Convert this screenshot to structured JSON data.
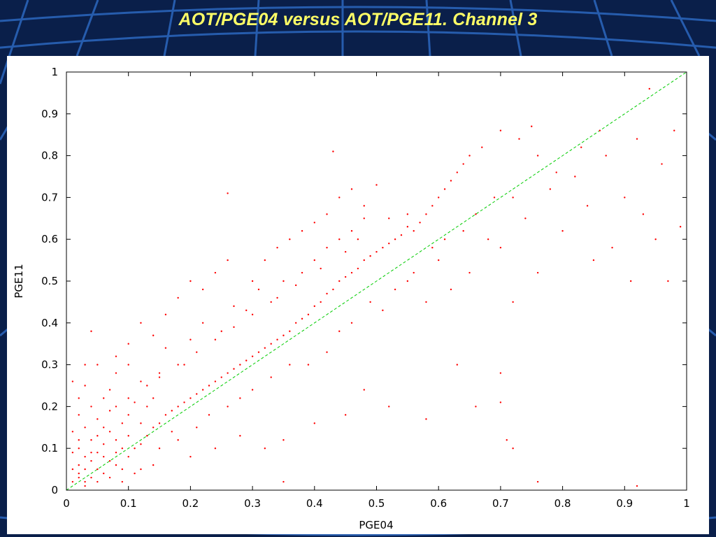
{
  "slide": {
    "title": "AOT/PGE04 versus AOT/PGE11. Channel 3",
    "background_color": "#0a1f4a",
    "title_color": "#ffff66"
  },
  "chart_data": {
    "type": "scatter",
    "xlabel": "PGE04",
    "ylabel": "PGE11",
    "xlim": [
      0,
      1
    ],
    "ylim": [
      0,
      1
    ],
    "x_ticks": [
      "0",
      "0.1",
      "0.2",
      "0.3",
      "0.4",
      "0.5",
      "0.6",
      "0.7",
      "0.8",
      "0.9",
      "1"
    ],
    "y_ticks": [
      "0",
      "0.1",
      "0.2",
      "0.3",
      "0.4",
      "0.5",
      "0.6",
      "0.7",
      "0.8",
      "0.9",
      "1"
    ],
    "grid": false,
    "legend": "none",
    "point_color": "#ff0000",
    "reference_line": {
      "style": "dashed",
      "color": "#00cc00",
      "from": [
        0,
        0
      ],
      "to": [
        1,
        1
      ]
    },
    "series": [
      {
        "points": [
          [
            0.01,
            0.02
          ],
          [
            0.02,
            0.03
          ],
          [
            0.01,
            0.05
          ],
          [
            0.03,
            0.02
          ],
          [
            0.02,
            0.06
          ],
          [
            0.04,
            0.03
          ],
          [
            0.03,
            0.08
          ],
          [
            0.05,
            0.05
          ],
          [
            0.02,
            0.1
          ],
          [
            0.04,
            0.12
          ],
          [
            0.06,
            0.04
          ],
          [
            0.01,
            0.14
          ],
          [
            0.05,
            0.09
          ],
          [
            0.07,
            0.07
          ],
          [
            0.03,
            0.15
          ],
          [
            0.06,
            0.11
          ],
          [
            0.08,
            0.06
          ],
          [
            0.02,
            0.18
          ],
          [
            0.09,
            0.1
          ],
          [
            0.04,
            0.2
          ],
          [
            0.07,
            0.14
          ],
          [
            0.1,
            0.08
          ],
          [
            0.05,
            0.17
          ],
          [
            0.08,
            0.12
          ],
          [
            0.11,
            0.1
          ],
          [
            0.06,
            0.22
          ],
          [
            0.09,
            0.16
          ],
          [
            0.12,
            0.11
          ],
          [
            0.03,
            0.25
          ],
          [
            0.1,
            0.18
          ],
          [
            0.13,
            0.13
          ],
          [
            0.07,
            0.24
          ],
          [
            0.12,
            0.16
          ],
          [
            0.14,
            0.15
          ],
          [
            0.08,
            0.28
          ],
          [
            0.11,
            0.21
          ],
          [
            0.15,
            0.16
          ],
          [
            0.05,
            0.3
          ],
          [
            0.13,
            0.2
          ],
          [
            0.16,
            0.18
          ],
          [
            0.1,
            0.3
          ],
          [
            0.14,
            0.22
          ],
          [
            0.17,
            0.19
          ],
          [
            0.18,
            0.2
          ],
          [
            0.12,
            0.26
          ],
          [
            0.19,
            0.21
          ],
          [
            0.2,
            0.22
          ],
          [
            0.15,
            0.28
          ],
          [
            0.21,
            0.23
          ],
          [
            0.22,
            0.24
          ],
          [
            0.16,
            0.34
          ],
          [
            0.23,
            0.25
          ],
          [
            0.24,
            0.26
          ],
          [
            0.19,
            0.3
          ],
          [
            0.25,
            0.27
          ],
          [
            0.26,
            0.28
          ],
          [
            0.2,
            0.36
          ],
          [
            0.27,
            0.29
          ],
          [
            0.28,
            0.3
          ],
          [
            0.22,
            0.4
          ],
          [
            0.29,
            0.31
          ],
          [
            0.3,
            0.32
          ],
          [
            0.25,
            0.38
          ],
          [
            0.31,
            0.33
          ],
          [
            0.32,
            0.34
          ],
          [
            0.27,
            0.44
          ],
          [
            0.33,
            0.35
          ],
          [
            0.34,
            0.36
          ],
          [
            0.3,
            0.42
          ],
          [
            0.35,
            0.37
          ],
          [
            0.36,
            0.38
          ],
          [
            0.31,
            0.48
          ],
          [
            0.37,
            0.4
          ],
          [
            0.38,
            0.41
          ],
          [
            0.33,
            0.45
          ],
          [
            0.39,
            0.42
          ],
          [
            0.4,
            0.44
          ],
          [
            0.35,
            0.5
          ],
          [
            0.41,
            0.45
          ],
          [
            0.42,
            0.47
          ],
          [
            0.38,
            0.52
          ],
          [
            0.43,
            0.48
          ],
          [
            0.44,
            0.5
          ],
          [
            0.4,
            0.55
          ],
          [
            0.45,
            0.51
          ],
          [
            0.46,
            0.52
          ],
          [
            0.42,
            0.58
          ],
          [
            0.47,
            0.53
          ],
          [
            0.48,
            0.55
          ],
          [
            0.44,
            0.6
          ],
          [
            0.49,
            0.56
          ],
          [
            0.5,
            0.57
          ],
          [
            0.46,
            0.62
          ],
          [
            0.51,
            0.58
          ],
          [
            0.52,
            0.59
          ],
          [
            0.48,
            0.65
          ],
          [
            0.53,
            0.6
          ],
          [
            0.54,
            0.61
          ],
          [
            0.55,
            0.63
          ],
          [
            0.56,
            0.62
          ],
          [
            0.57,
            0.64
          ],
          [
            0.58,
            0.66
          ],
          [
            0.59,
            0.68
          ],
          [
            0.6,
            0.7
          ],
          [
            0.61,
            0.72
          ],
          [
            0.62,
            0.74
          ],
          [
            0.63,
            0.76
          ],
          [
            0.64,
            0.78
          ],
          [
            0.65,
            0.8
          ],
          [
            0.67,
            0.82
          ],
          [
            0.43,
            0.81
          ],
          [
            0.26,
            0.71
          ],
          [
            0.5,
            0.73
          ],
          [
            0.55,
            0.5
          ],
          [
            0.58,
            0.45
          ],
          [
            0.6,
            0.55
          ],
          [
            0.62,
            0.48
          ],
          [
            0.65,
            0.52
          ],
          [
            0.68,
            0.6
          ],
          [
            0.7,
            0.58
          ],
          [
            0.72,
            0.7
          ],
          [
            0.74,
            0.65
          ],
          [
            0.76,
            0.8
          ],
          [
            0.78,
            0.72
          ],
          [
            0.8,
            0.62
          ],
          [
            0.82,
            0.75
          ],
          [
            0.84,
            0.68
          ],
          [
            0.86,
            0.86
          ],
          [
            0.88,
            0.58
          ],
          [
            0.9,
            0.7
          ],
          [
            0.92,
            0.84
          ],
          [
            0.94,
            0.96
          ],
          [
            0.96,
            0.78
          ],
          [
            0.98,
            0.86
          ],
          [
            0.99,
            0.63
          ],
          [
            0.97,
            0.5
          ],
          [
            0.95,
            0.6
          ],
          [
            0.93,
            0.66
          ],
          [
            0.91,
            0.5
          ],
          [
            0.87,
            0.8
          ],
          [
            0.7,
            0.86
          ],
          [
            0.73,
            0.84
          ],
          [
            0.75,
            0.87
          ],
          [
            0.79,
            0.76
          ],
          [
            0.83,
            0.82
          ],
          [
            0.85,
            0.55
          ],
          [
            0.76,
            0.52
          ],
          [
            0.72,
            0.45
          ],
          [
            0.7,
            0.28
          ],
          [
            0.7,
            0.21
          ],
          [
            0.71,
            0.12
          ],
          [
            0.72,
            0.1
          ],
          [
            0.66,
            0.2
          ],
          [
            0.63,
            0.3
          ],
          [
            0.58,
            0.17
          ],
          [
            0.52,
            0.2
          ],
          [
            0.48,
            0.24
          ],
          [
            0.45,
            0.18
          ],
          [
            0.4,
            0.16
          ],
          [
            0.35,
            0.12
          ],
          [
            0.32,
            0.1
          ],
          [
            0.28,
            0.13
          ],
          [
            0.24,
            0.1
          ],
          [
            0.2,
            0.08
          ],
          [
            0.17,
            0.14
          ],
          [
            0.14,
            0.06
          ],
          [
            0.11,
            0.04
          ],
          [
            0.09,
            0.02
          ],
          [
            0.35,
            0.02
          ],
          [
            0.76,
            0.02
          ],
          [
            0.92,
            0.01
          ],
          [
            0.39,
            0.3
          ],
          [
            0.42,
            0.33
          ],
          [
            0.44,
            0.38
          ],
          [
            0.46,
            0.4
          ],
          [
            0.49,
            0.45
          ],
          [
            0.51,
            0.43
          ],
          [
            0.53,
            0.48
          ],
          [
            0.56,
            0.52
          ],
          [
            0.59,
            0.58
          ],
          [
            0.61,
            0.6
          ],
          [
            0.64,
            0.62
          ],
          [
            0.66,
            0.66
          ],
          [
            0.69,
            0.7
          ],
          [
            0.55,
            0.66
          ],
          [
            0.52,
            0.65
          ],
          [
            0.47,
            0.6
          ],
          [
            0.45,
            0.57
          ],
          [
            0.41,
            0.53
          ],
          [
            0.37,
            0.49
          ],
          [
            0.34,
            0.46
          ],
          [
            0.29,
            0.43
          ],
          [
            0.27,
            0.39
          ],
          [
            0.24,
            0.36
          ],
          [
            0.21,
            0.33
          ],
          [
            0.18,
            0.3
          ],
          [
            0.15,
            0.27
          ],
          [
            0.13,
            0.25
          ],
          [
            0.1,
            0.22
          ],
          [
            0.08,
            0.2
          ],
          [
            0.12,
            0.05
          ],
          [
            0.15,
            0.1
          ],
          [
            0.18,
            0.12
          ],
          [
            0.21,
            0.15
          ],
          [
            0.23,
            0.18
          ],
          [
            0.26,
            0.2
          ],
          [
            0.28,
            0.22
          ],
          [
            0.3,
            0.24
          ],
          [
            0.33,
            0.27
          ],
          [
            0.36,
            0.3
          ],
          [
            0.01,
            0.09
          ],
          [
            0.02,
            0.12
          ],
          [
            0.03,
            0.05
          ],
          [
            0.04,
            0.07
          ],
          [
            0.05,
            0.02
          ],
          [
            0.06,
            0.08
          ],
          [
            0.07,
            0.03
          ],
          [
            0.08,
            0.09
          ],
          [
            0.09,
            0.05
          ],
          [
            0.1,
            0.13
          ],
          [
            0.02,
            0.04
          ],
          [
            0.03,
            0.01
          ],
          [
            0.04,
            0.09
          ],
          [
            0.05,
            0.13
          ],
          [
            0.06,
            0.15
          ],
          [
            0.07,
            0.19
          ],
          [
            0.02,
            0.22
          ],
          [
            0.01,
            0.26
          ],
          [
            0.03,
            0.3
          ],
          [
            0.04,
            0.38
          ],
          [
            0.08,
            0.32
          ],
          [
            0.1,
            0.35
          ],
          [
            0.12,
            0.4
          ],
          [
            0.14,
            0.37
          ],
          [
            0.16,
            0.42
          ],
          [
            0.18,
            0.46
          ],
          [
            0.2,
            0.5
          ],
          [
            0.22,
            0.48
          ],
          [
            0.24,
            0.52
          ],
          [
            0.26,
            0.55
          ],
          [
            0.3,
            0.5
          ],
          [
            0.32,
            0.55
          ],
          [
            0.34,
            0.58
          ],
          [
            0.36,
            0.6
          ],
          [
            0.38,
            0.62
          ],
          [
            0.4,
            0.64
          ],
          [
            0.42,
            0.66
          ],
          [
            0.44,
            0.7
          ],
          [
            0.46,
            0.72
          ],
          [
            0.48,
            0.68
          ]
        ]
      }
    ]
  }
}
